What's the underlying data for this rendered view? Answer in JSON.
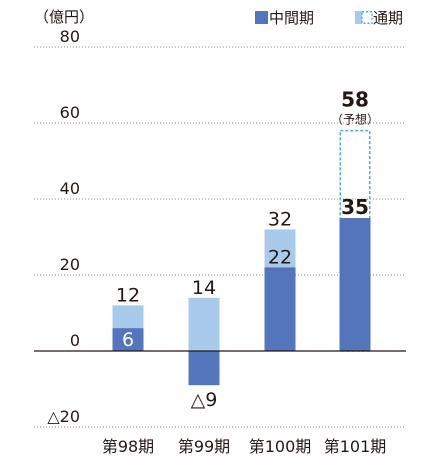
{
  "chart_data": {
    "type": "bar",
    "unit_label": "（億円）",
    "categories": [
      "第98期",
      "第99期",
      "第100期",
      "第101期"
    ],
    "ylim": [
      -20,
      80
    ],
    "yticks": [
      80,
      60,
      40,
      20,
      0,
      -20
    ],
    "ytick_labels": [
      "80",
      "60",
      "40",
      "20",
      "0",
      "△20"
    ],
    "grid": "dotted horizontal",
    "legend_position": "top-right",
    "series": [
      {
        "name": "中間期",
        "color": "#5474bb",
        "values": [
          6,
          -9,
          22,
          35
        ],
        "labels": [
          "6",
          "△9",
          "22",
          "35"
        ]
      },
      {
        "name": "通期",
        "color": "#a9cbeb",
        "values": [
          12,
          14,
          32,
          58
        ],
        "labels": [
          "12",
          "14",
          "32",
          "58"
        ],
        "forecast_index": 3,
        "forecast_note": "（予想）"
      }
    ]
  }
}
